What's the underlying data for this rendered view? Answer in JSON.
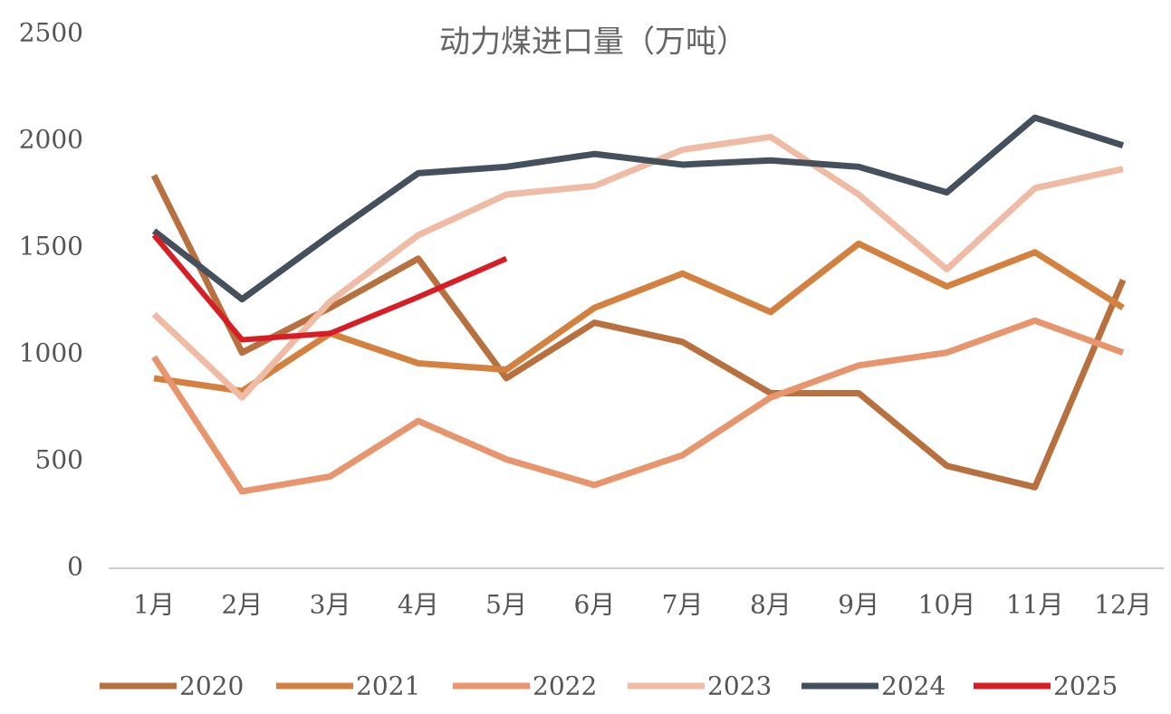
{
  "chart_data": {
    "type": "line",
    "title": "动力煤进口量（万吨）",
    "categories": [
      "1月",
      "2月",
      "3月",
      "4月",
      "5月",
      "6月",
      "7月",
      "8月",
      "9月",
      "10月",
      "11月",
      "12月"
    ],
    "ylim": [
      0,
      2500
    ],
    "yticks": [
      0,
      500,
      1000,
      1500,
      2000,
      2500
    ],
    "grid": false,
    "legend": "bottom",
    "series": [
      {
        "name": "2020",
        "color": "#b8703f",
        "values": [
          1840,
          1010,
          1220,
          1450,
          890,
          1150,
          1060,
          820,
          820,
          480,
          380,
          1350
        ]
      },
      {
        "name": "2021",
        "color": "#d4803f",
        "values": [
          890,
          830,
          1100,
          960,
          930,
          1220,
          1380,
          1200,
          1520,
          1320,
          1480,
          1220
        ]
      },
      {
        "name": "2022",
        "color": "#e8956d",
        "values": [
          990,
          360,
          430,
          690,
          510,
          390,
          530,
          800,
          950,
          1010,
          1160,
          1010
        ]
      },
      {
        "name": "2023",
        "color": "#f0bba5",
        "values": [
          1190,
          800,
          1250,
          1560,
          1750,
          1790,
          1960,
          2020,
          1750,
          1400,
          1780,
          1870
        ]
      },
      {
        "name": "2024",
        "color": "#44505c",
        "values": [
          1580,
          1260,
          1560,
          1850,
          1880,
          1940,
          1890,
          1910,
          1880,
          1760,
          2110,
          1980
        ]
      },
      {
        "name": "2025",
        "color": "#d81e24",
        "values": [
          1560,
          1070,
          1100,
          1270,
          1450,
          null,
          null,
          null,
          null,
          null,
          null,
          null
        ]
      }
    ]
  }
}
